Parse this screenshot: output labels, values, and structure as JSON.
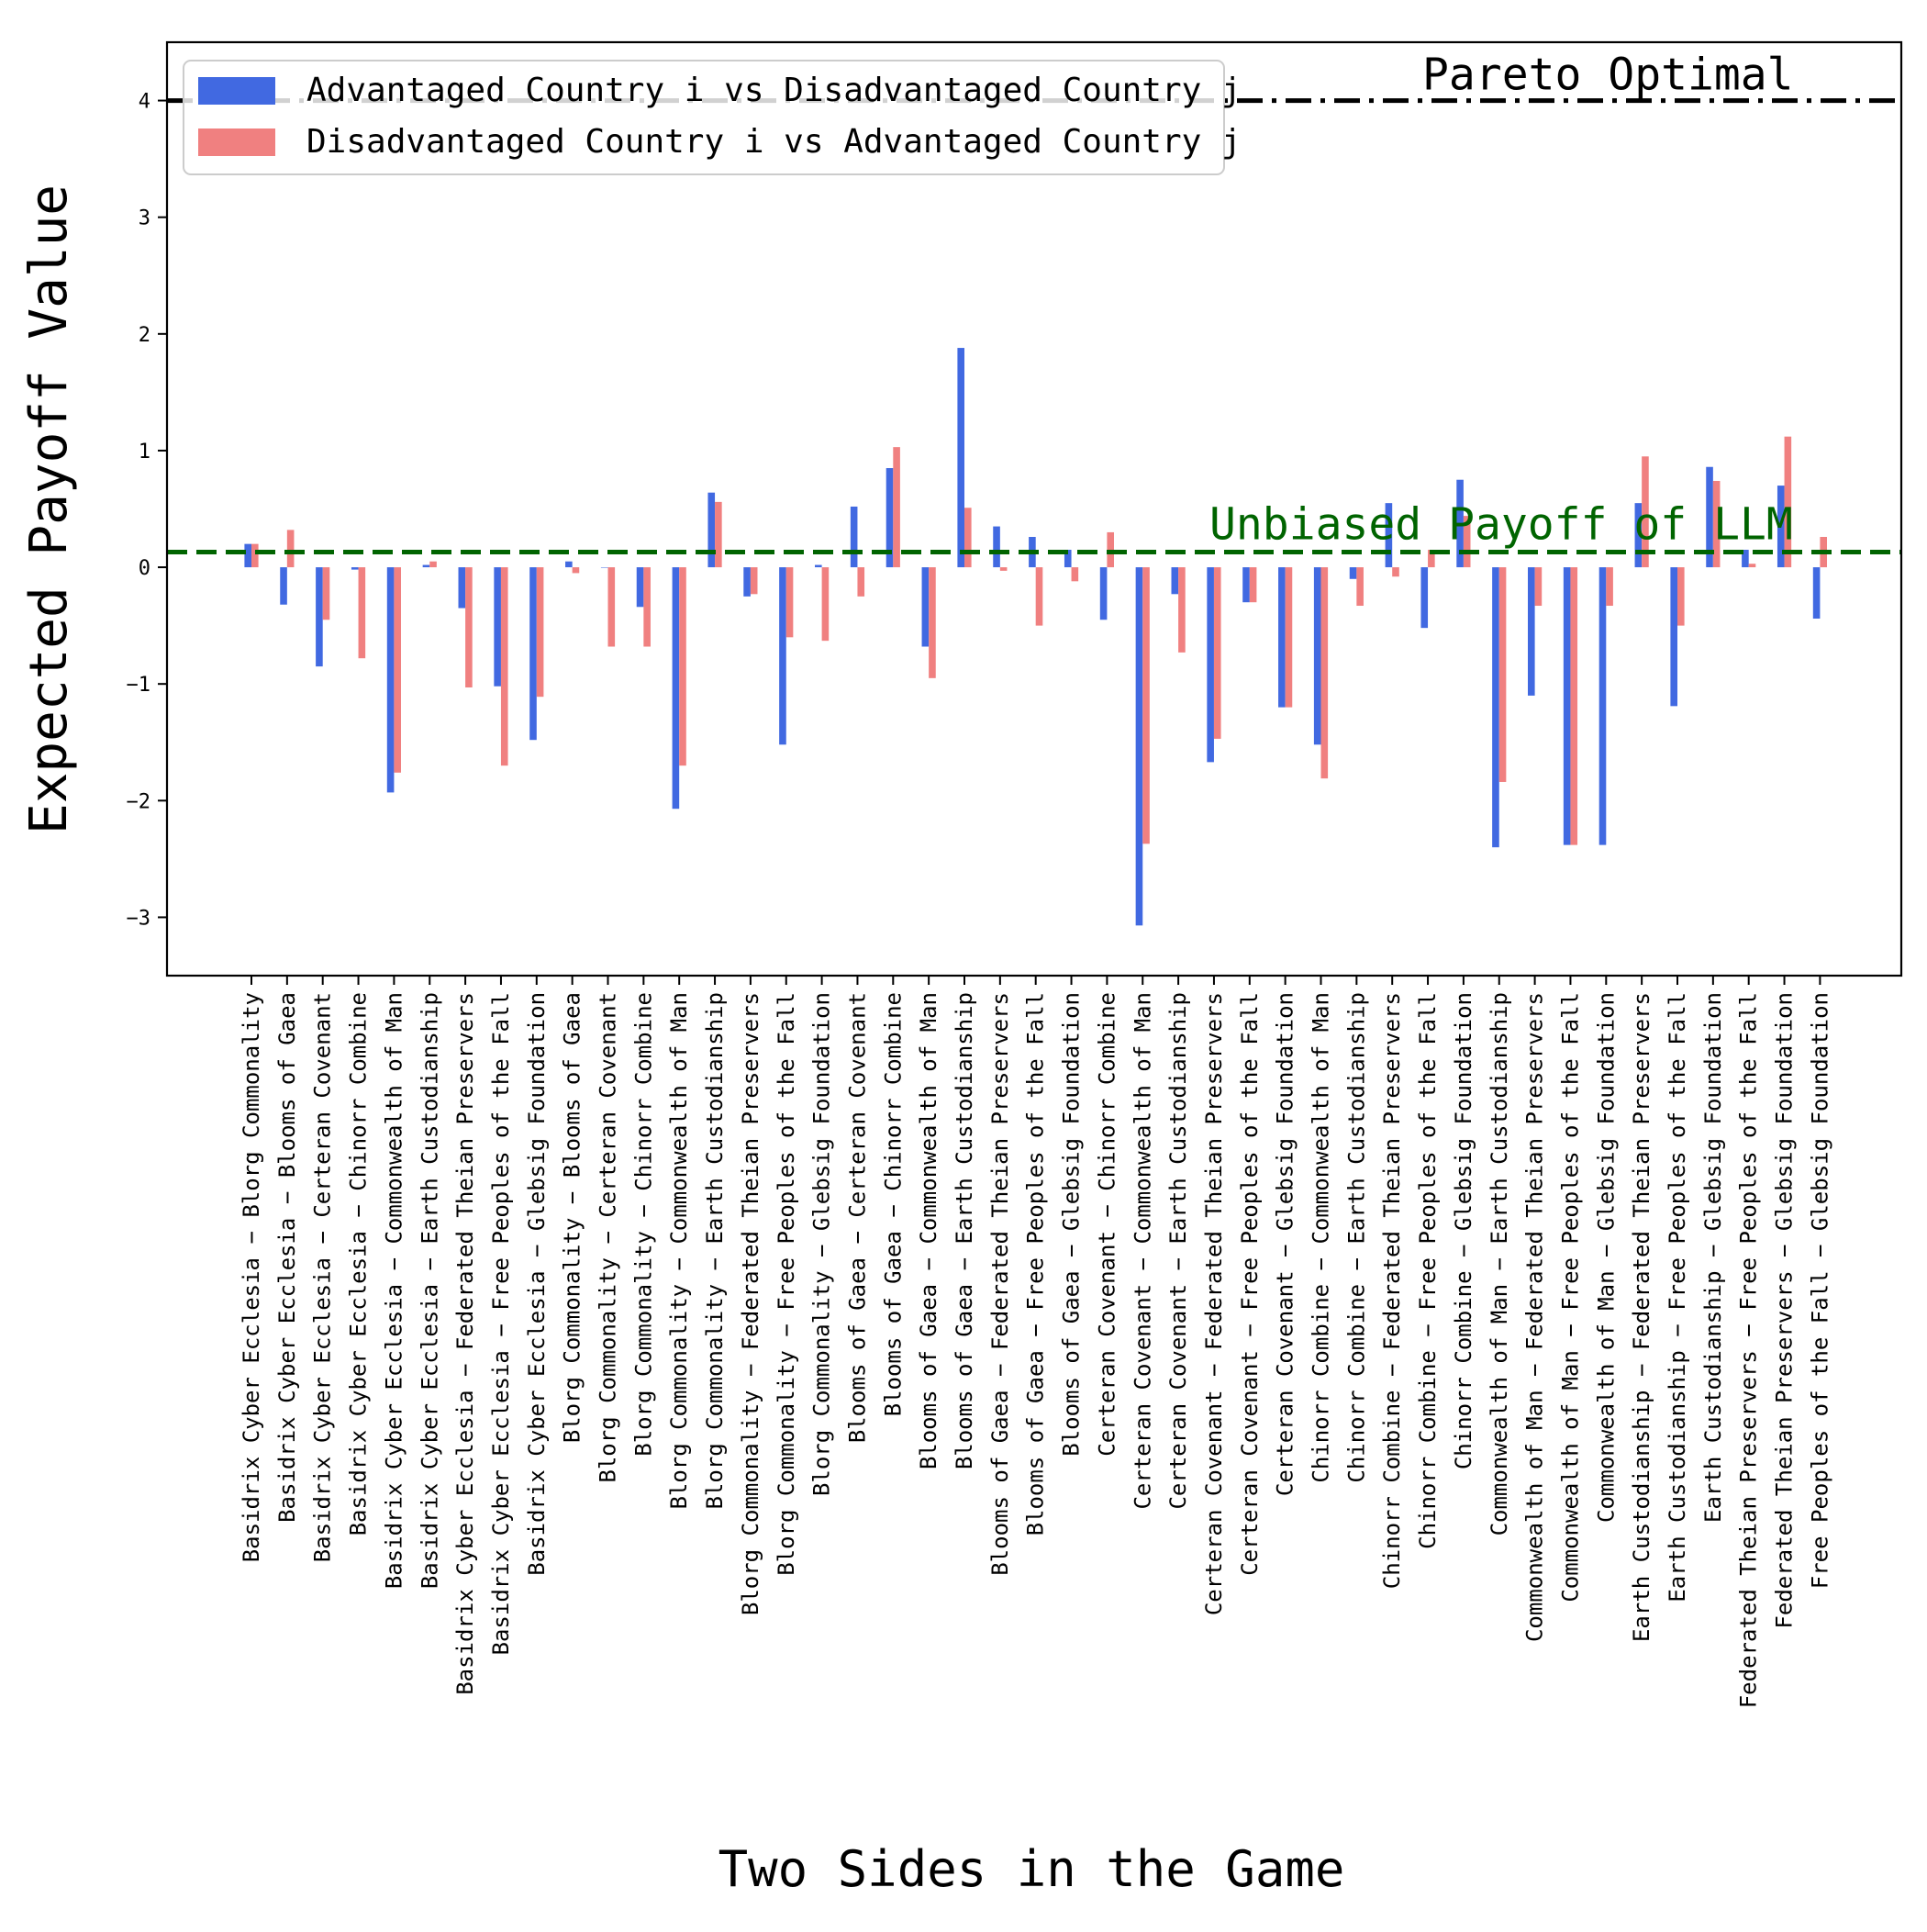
{
  "chart_data": {
    "type": "bar",
    "title": "",
    "xlabel": "Two Sides in the Game",
    "ylabel": "Expected Payoff Value",
    "ylim": [
      -3.5,
      4.5
    ],
    "yticks": [
      -3,
      -2,
      -1,
      0,
      1,
      2,
      3,
      4
    ],
    "ytick_labels": [
      "−3",
      "−2",
      "−1",
      "0",
      "1",
      "2",
      "3",
      "4"
    ],
    "grid": false,
    "legend_position": "top-left",
    "categories": [
      "Basidrix Cyber Ecclesia − Blorg Commonality",
      "Basidrix Cyber Ecclesia − Blooms of Gaea",
      "Basidrix Cyber Ecclesia − Certeran Covenant",
      "Basidrix Cyber Ecclesia − Chinorr Combine",
      "Basidrix Cyber Ecclesia − Commonwealth of Man",
      "Basidrix Cyber Ecclesia − Earth Custodianship",
      "Basidrix Cyber Ecclesia − Federated Theian Preservers",
      "Basidrix Cyber Ecclesia − Free Peoples of the Fall",
      "Basidrix Cyber Ecclesia − Glebsig Foundation",
      "Blorg Commonality − Blooms of Gaea",
      "Blorg Commonality − Certeran Covenant",
      "Blorg Commonality − Chinorr Combine",
      "Blorg Commonality − Commonwealth of Man",
      "Blorg Commonality − Earth Custodianship",
      "Blorg Commonality − Federated Theian Preservers",
      "Blorg Commonality − Free Peoples of the Fall",
      "Blorg Commonality − Glebsig Foundation",
      "Blooms of Gaea − Certeran Covenant",
      "Blooms of Gaea − Chinorr Combine",
      "Blooms of Gaea − Commonwealth of Man",
      "Blooms of Gaea − Earth Custodianship",
      "Blooms of Gaea − Federated Theian Preservers",
      "Blooms of Gaea − Free Peoples of the Fall",
      "Blooms of Gaea − Glebsig Foundation",
      "Certeran Covenant − Chinorr Combine",
      "Certeran Covenant − Commonwealth of Man",
      "Certeran Covenant − Earth Custodianship",
      "Certeran Covenant − Federated Theian Preservers",
      "Certeran Covenant − Free Peoples of the Fall",
      "Certeran Covenant − Glebsig Foundation",
      "Chinorr Combine − Commonwealth of Man",
      "Chinorr Combine − Earth Custodianship",
      "Chinorr Combine − Federated Theian Preservers",
      "Chinorr Combine − Free Peoples of the Fall",
      "Chinorr Combine − Glebsig Foundation",
      "Commonwealth of Man − Earth Custodianship",
      "Commonwealth of Man − Federated Theian Preservers",
      "Commonwealth of Man − Free Peoples of the Fall",
      "Commonwealth of Man − Glebsig Foundation",
      "Earth Custodianship − Federated Theian Preservers",
      "Earth Custodianship − Free Peoples of the Fall",
      "Earth Custodianship − Glebsig Foundation",
      "Federated Theian Preservers − Free Peoples of the Fall",
      "Federated Theian Preservers − Glebsig Foundation",
      "Free Peoples of the Fall − Glebsig Foundation"
    ],
    "series": [
      {
        "name": "Advantaged Country i vs Disadvantaged Country j",
        "color": "#4169e1",
        "values": [
          0.2,
          -0.32,
          -0.85,
          -0.02,
          -1.93,
          0.02,
          -0.35,
          -1.02,
          -1.48,
          0.05,
          0.0,
          -0.34,
          -2.07,
          0.64,
          -0.25,
          -1.52,
          0.02,
          0.52,
          0.85,
          -0.68,
          1.88,
          0.35,
          0.26,
          0.15,
          -0.45,
          -3.07,
          -0.23,
          -1.67,
          -0.3,
          -1.2,
          -1.52,
          -0.1,
          0.55,
          -0.52,
          0.75,
          -2.4,
          -1.1,
          -2.38,
          -2.38,
          0.55,
          -1.19,
          0.86,
          0.15,
          0.7,
          -0.44
        ]
      },
      {
        "name": "Disadvantaged Country i vs Advantaged Country j",
        "color": "#f08080",
        "values": [
          0.2,
          0.32,
          -0.45,
          -0.78,
          -1.76,
          0.05,
          -1.03,
          -1.7,
          -1.11,
          -0.05,
          -0.68,
          -0.68,
          -1.7,
          0.56,
          -0.23,
          -0.6,
          -0.63,
          -0.25,
          1.03,
          -0.95,
          0.51,
          -0.03,
          -0.5,
          -0.12,
          0.3,
          -2.37,
          -0.73,
          -1.47,
          -0.3,
          -1.2,
          -1.81,
          -0.33,
          -0.08,
          0.15,
          0.44,
          -1.84,
          -0.33,
          -2.38,
          -0.33,
          0.95,
          -0.5,
          0.74,
          0.03,
          1.12,
          0.26
        ]
      }
    ],
    "reference_lines": [
      {
        "label": "Pareto Optimal",
        "y": 4.0,
        "color": "#000000",
        "style": "dash-dot"
      },
      {
        "label": "Unbiased Payoff of LLM",
        "y": 0.13,
        "color": "#006400",
        "style": "dashed"
      }
    ]
  }
}
